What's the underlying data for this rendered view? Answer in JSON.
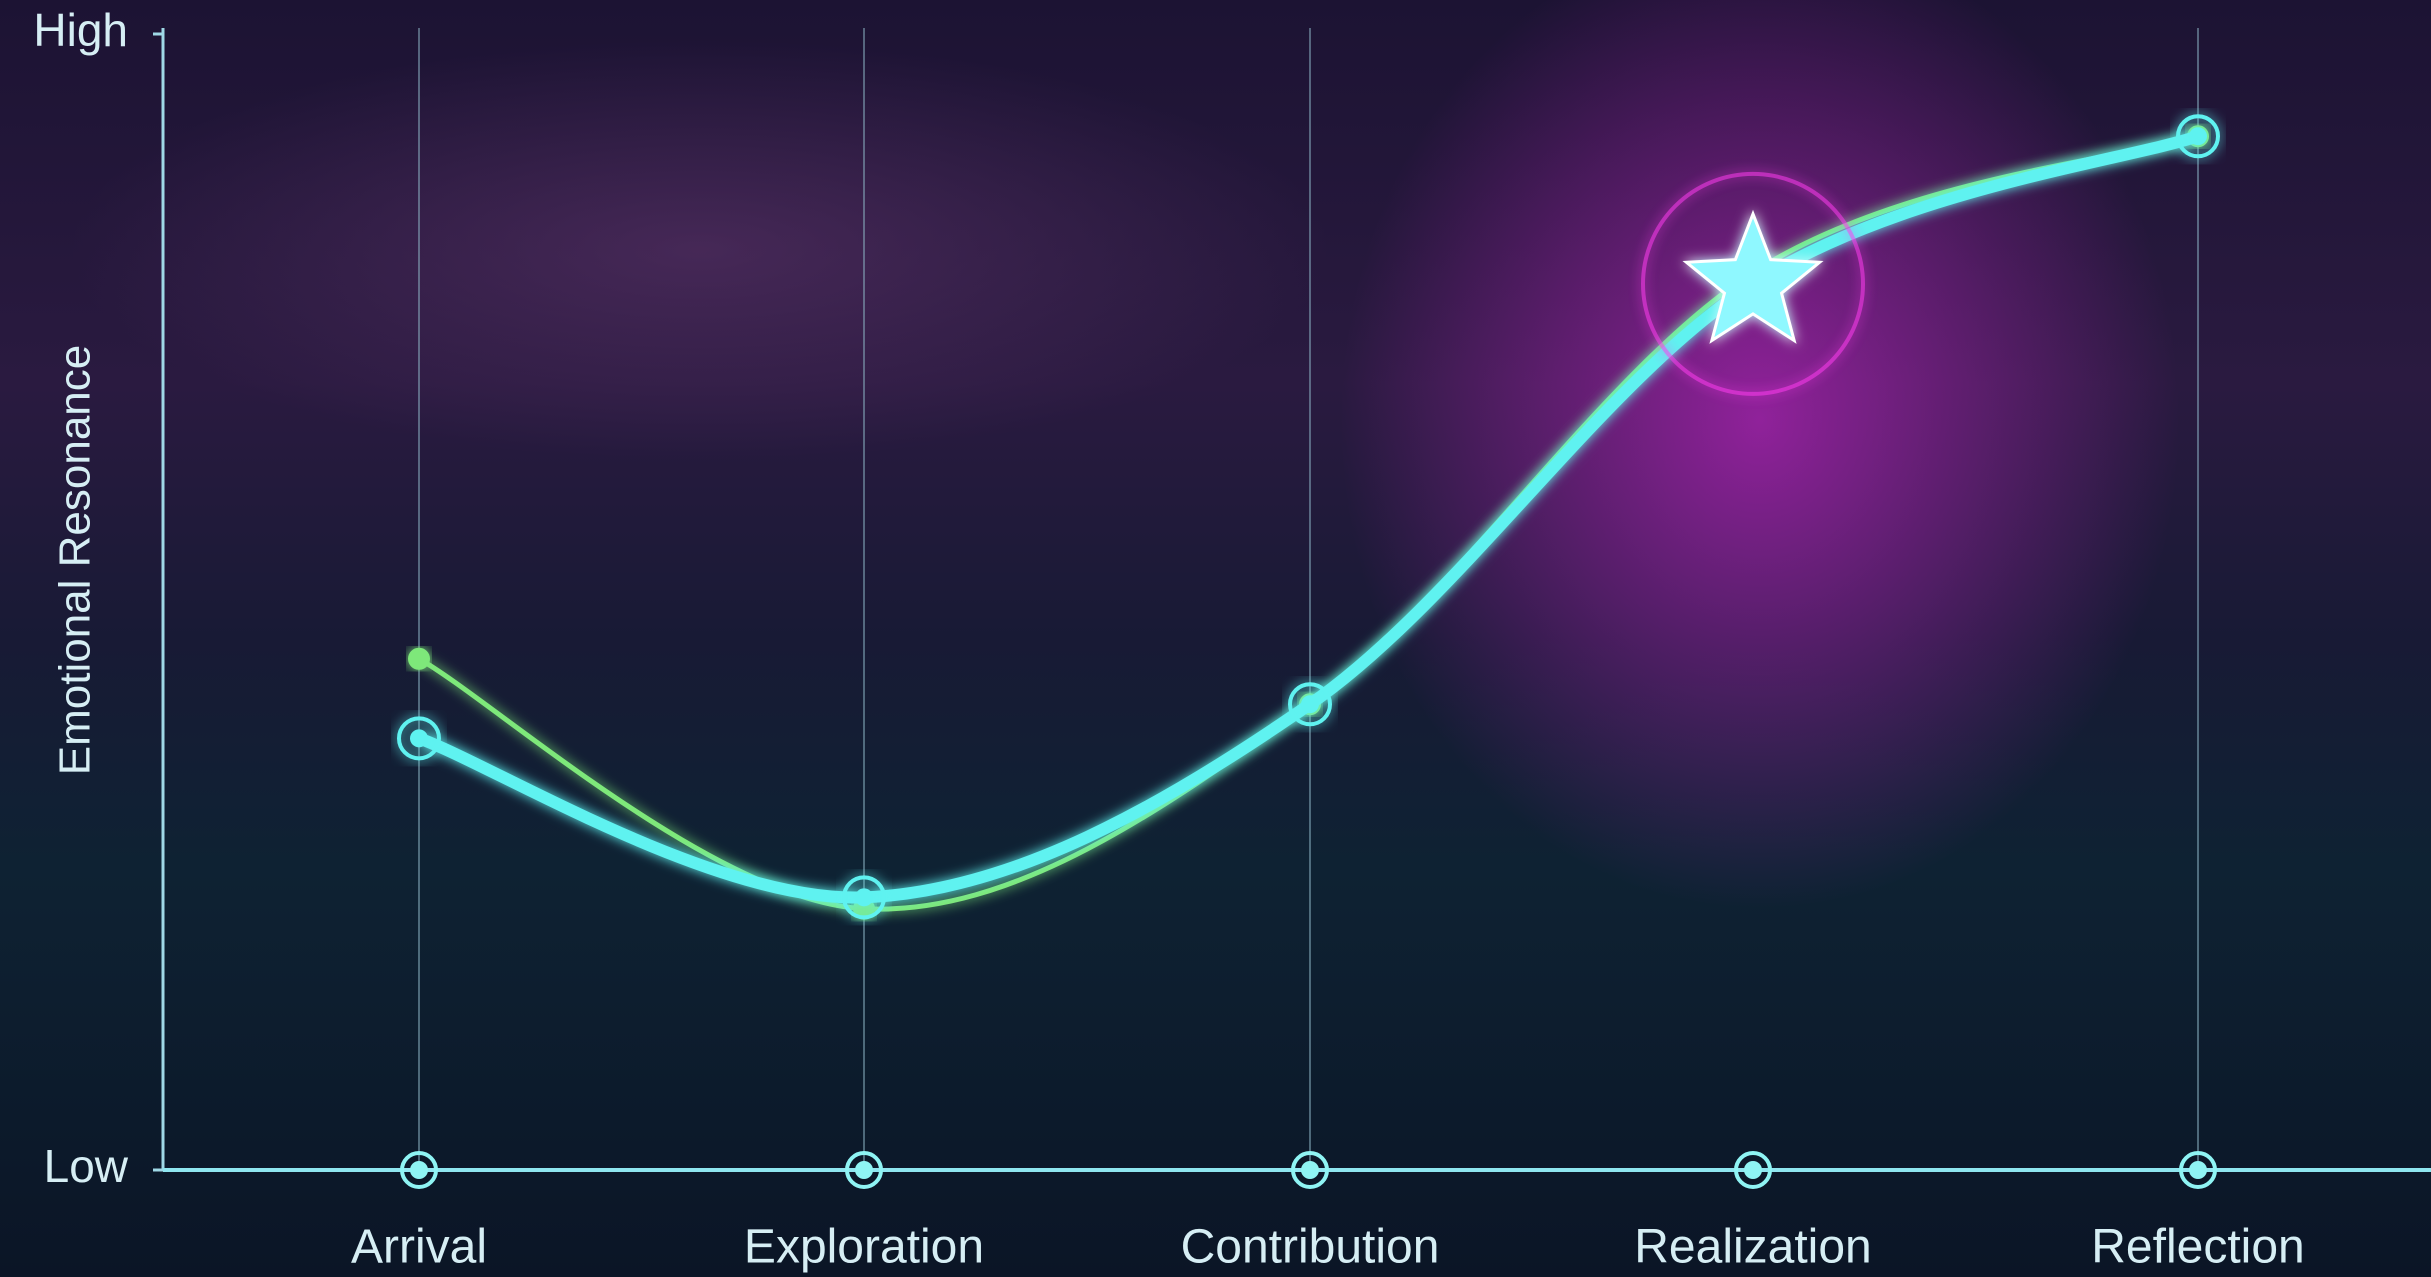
{
  "chart_data": {
    "type": "line",
    "y_label": "Emotional Resonance",
    "categories": [
      "Arrival",
      "Exploration",
      "Contribution",
      "Realization",
      "Reflection"
    ],
    "series": [
      {
        "color": "#7ee87a",
        "values": [
          45,
          23,
          41,
          79,
          91
        ]
      },
      {
        "color": "#5ef2f0",
        "values": [
          38,
          24,
          41,
          78,
          91
        ]
      }
    ],
    "highlight_category": 3,
    "highlight_color": "#ff3cf0",
    "ylim": [
      0,
      100
    ],
    "yticks": [
      {
        "value": 0,
        "label": "Low"
      },
      {
        "value": 100,
        "label": "High"
      }
    ]
  }
}
